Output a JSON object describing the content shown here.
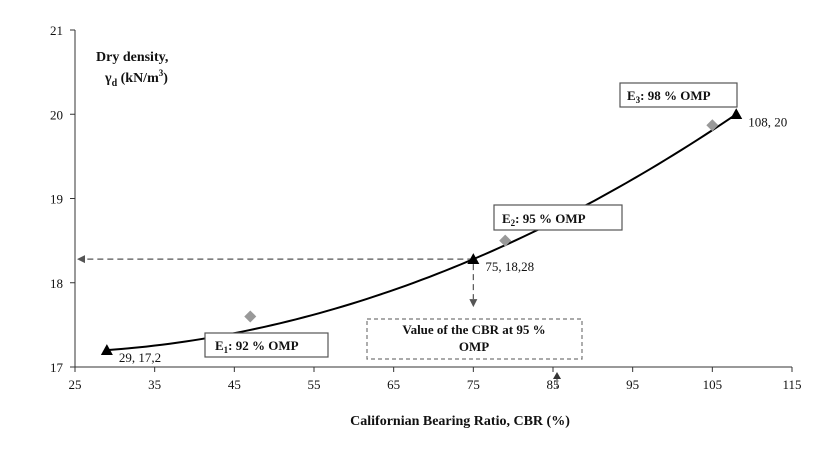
{
  "chart_data": {
    "type": "line",
    "xlabel": "Californian Bearing Ratio, CBR (%)",
    "ylabel_line1": "Dry density,",
    "ylabel_symbol": "γ",
    "ylabel_sub": "d",
    "ylabel_unit_pre": " (kN/m",
    "ylabel_unit_sup": "3",
    "ylabel_unit_post": ")",
    "xlim": [
      25,
      115
    ],
    "ylim": [
      17,
      21
    ],
    "xticks": [
      25,
      35,
      45,
      55,
      65,
      75,
      85,
      95,
      105,
      115
    ],
    "yticks": [
      17,
      18,
      19,
      20,
      21
    ],
    "grid": false,
    "series": [
      {
        "marker": "triangle",
        "color": "#000000",
        "points": [
          {
            "x": 29,
            "y": 17.2,
            "label": "29, 17,2"
          },
          {
            "x": 75,
            "y": 18.28,
            "label": "75, 18,28"
          },
          {
            "x": 108,
            "y": 20,
            "label": "108, 20"
          }
        ]
      },
      {
        "marker": "diamond",
        "color": "#999999",
        "points": [
          {
            "x": 47,
            "y": 17.6
          },
          {
            "x": 79,
            "y": 18.5
          },
          {
            "x": 105,
            "y": 19.87
          }
        ]
      }
    ],
    "boxes": [
      {
        "pre": "E",
        "sub": "1",
        "post": ": 92 % OMP"
      },
      {
        "pre": "E",
        "sub": "2",
        "post": ": 95 % OMP"
      },
      {
        "pre": "E",
        "sub": "3",
        "post": ": 98 % OMP"
      }
    ],
    "annotation": {
      "line1": "Value of the CBR at 95 %",
      "line2": "OMP",
      "x_value": 75,
      "y_value": 18.28
    }
  }
}
